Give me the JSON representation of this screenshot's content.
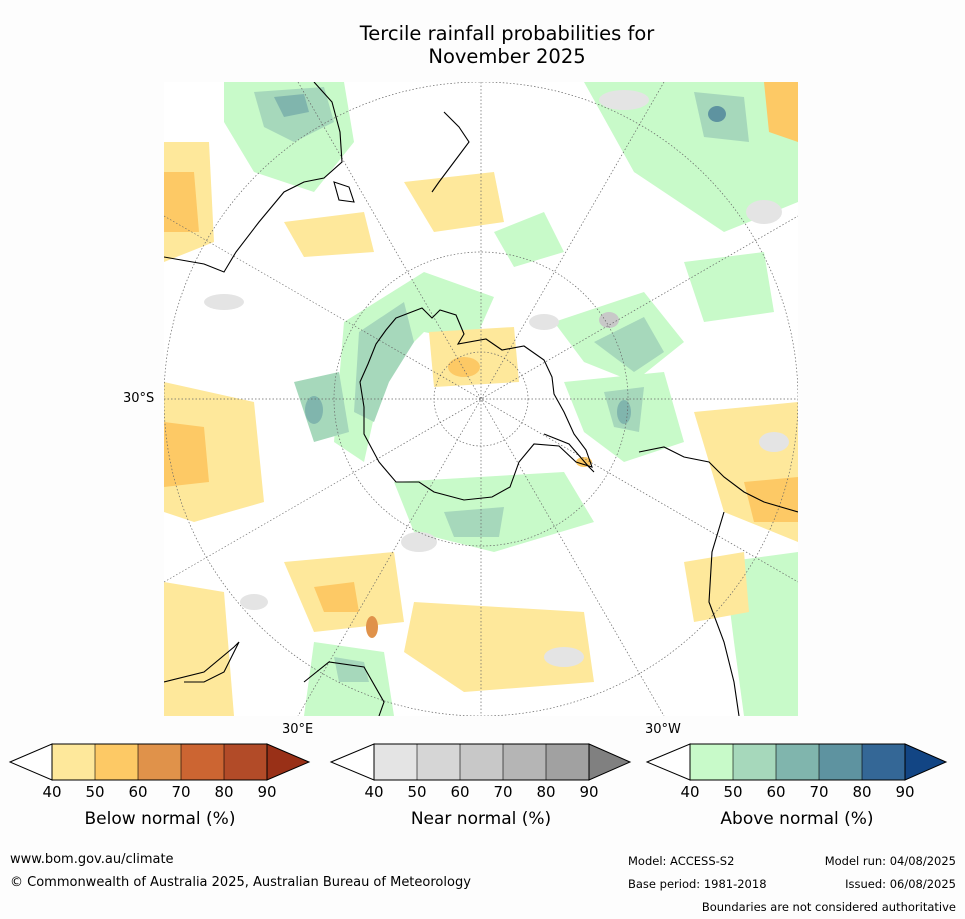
{
  "title_line1": "Tercile rainfall probabilities for",
  "title_line2": "November 2025",
  "map": {
    "projection": "south-polar-stereographic",
    "lat_label": "30°S",
    "lon_labels": [
      "30°E",
      "30°W"
    ],
    "graticule": "dotted",
    "ocean_color": "#ffffff",
    "coast_color": "#000000"
  },
  "legends": [
    {
      "caption": "Below normal (%)",
      "ticks": [
        "40",
        "50",
        "60",
        "70",
        "80",
        "90"
      ],
      "colors": [
        "#ffffff",
        "#fee89b",
        "#fdc965",
        "#e0924a",
        "#cc6532",
        "#b24b28",
        "#993017"
      ]
    },
    {
      "caption": "Near normal (%)",
      "ticks": [
        "40",
        "50",
        "60",
        "70",
        "80",
        "90"
      ],
      "colors": [
        "#ffffff",
        "#e4e4e4",
        "#d6d6d6",
        "#c8c8c8",
        "#b5b5b5",
        "#a1a1a1",
        "#808080"
      ]
    },
    {
      "caption": "Above normal (%)",
      "ticks": [
        "40",
        "50",
        "60",
        "70",
        "80",
        "90"
      ],
      "colors": [
        "#ffffff",
        "#c8fac9",
        "#a6d8bb",
        "#80b5ad",
        "#5e93a0",
        "#346796",
        "#124584"
      ]
    }
  ],
  "footer": {
    "url": "www.bom.gov.au/climate",
    "copyright": "© Commonwealth of Australia 2025, Australian Bureau of Meteorology",
    "model": "Model: ACCESS-S2",
    "model_run": "Model run: 04/08/2025",
    "base_period": "Base period: 1981-2018",
    "issued": "Issued: 06/08/2025",
    "disclaimer": "Boundaries are not considered authoritative"
  }
}
